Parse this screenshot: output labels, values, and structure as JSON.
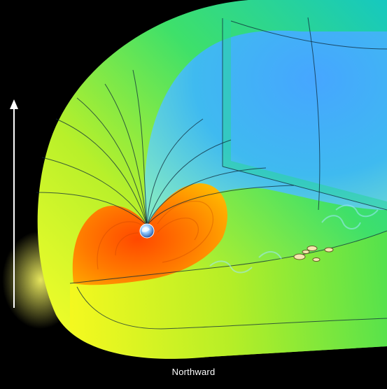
{
  "caption": "Northward",
  "arrow": {
    "direction": "up",
    "color": "#ffffff"
  },
  "colors": {
    "background": "#000000",
    "outer_shell_tail": "#21d6a8",
    "outer_shell_front": "#e6f01a",
    "inner_cavity": "#3fb2f2",
    "inner_core": "#ff6a00",
    "field_lines": "#0d2a3a"
  },
  "icons": {
    "planet": "earth-icon",
    "direction_arrow": "up-arrow-icon",
    "spacecraft": "spacecraft-icon"
  },
  "spacecraft_count": 5
}
